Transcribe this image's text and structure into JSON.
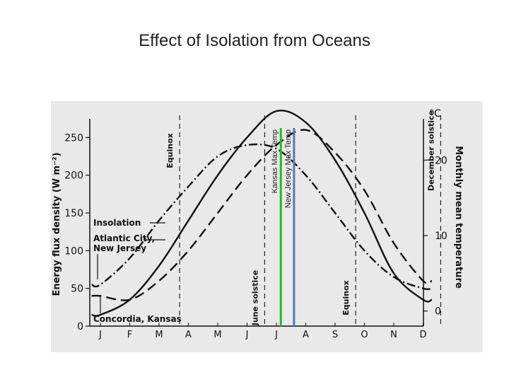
{
  "title": "Effect of Isolation from Oceans",
  "chart_data": {
    "type": "line",
    "x_categories": [
      "J",
      "F",
      "M",
      "A",
      "M",
      "J",
      "J",
      "A",
      "S",
      "O",
      "N",
      "D"
    ],
    "y_left": {
      "label": "Energy flux density (W m⁻²)",
      "ticks": [
        0,
        50,
        100,
        150,
        200,
        250
      ],
      "lim": [
        0,
        270
      ]
    },
    "y_right": {
      "label": "Monthly mean temperature",
      "unit": "°C",
      "ticks": [
        0,
        10,
        20
      ],
      "lim": [
        -2,
        25
      ]
    },
    "series": [
      {
        "name": "Insolation",
        "axis": "left",
        "style": "dash-dot",
        "x": [
          0,
          1,
          2,
          3,
          4,
          5,
          6,
          7,
          8,
          9,
          10,
          11
        ],
        "values": [
          55,
          90,
          140,
          185,
          225,
          240,
          235,
          200,
          150,
          100,
          65,
          50
        ]
      },
      {
        "name": "Concordia, Kansas",
        "axis": "right",
        "style": "solid",
        "x": [
          0,
          1,
          2,
          3,
          4,
          5,
          6,
          7,
          8,
          9,
          10,
          11
        ],
        "values": [
          -0.5,
          1.5,
          6,
          12,
          18,
          23,
          26.5,
          25,
          20,
          13,
          5,
          1.5
        ]
      },
      {
        "name": "Atlantic City, New Jersey",
        "axis": "right",
        "style": "dashed",
        "x": [
          0,
          1,
          2,
          3,
          4,
          5,
          6,
          7,
          8,
          9,
          10,
          11
        ],
        "values": [
          2,
          1.5,
          4,
          8,
          13,
          18,
          22,
          24,
          21,
          16,
          9,
          4
        ]
      }
    ],
    "reference_lines": [
      {
        "label": "Equinox",
        "month": 2.7
      },
      {
        "label": "June solstice",
        "month": 5.6
      },
      {
        "label": "Equinox",
        "month": 8.7
      },
      {
        "label": "December solstice",
        "month": 11.6
      }
    ],
    "annotations": {
      "insolation": "Insolation",
      "atlantic_1": "Atlantic City,",
      "atlantic_2": "New Jersey",
      "concordia": "Concordia, Kansas"
    },
    "markers": [
      {
        "label": "Kansas Max Temp",
        "month": 6.15,
        "color": "#22bb22"
      },
      {
        "label": "New Jersey Max Temp",
        "month": 6.6,
        "color": "#5577bb"
      }
    ]
  }
}
